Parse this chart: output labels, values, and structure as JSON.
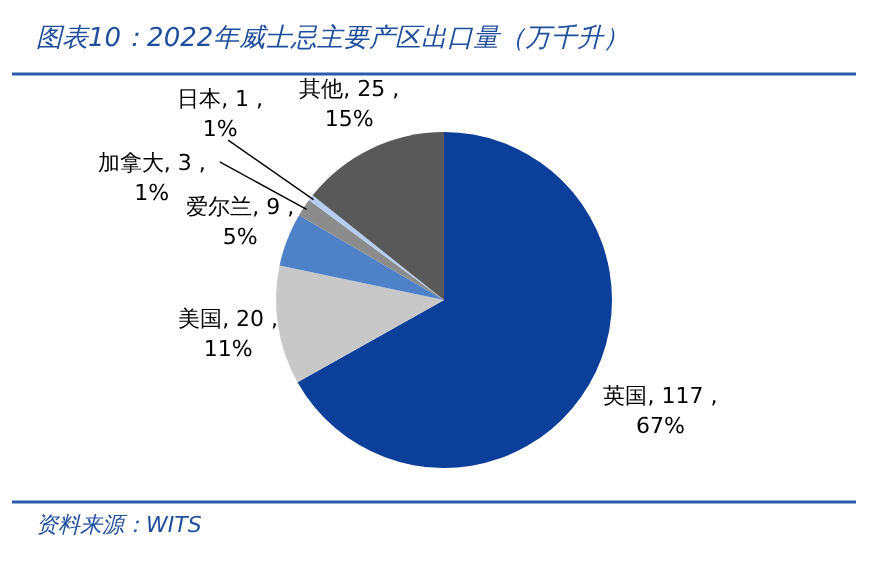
{
  "chart_data": {
    "type": "pie",
    "title": "图表10：2022年威士忌主要产区出口量（万千升）",
    "categories": [
      "英国",
      "美国",
      "爱尔兰",
      "加拿大",
      "日本",
      "其他"
    ],
    "values": [
      117,
      20,
      9,
      3,
      1,
      25
    ],
    "value_labels": [
      "117 ,\n67%",
      "20 ,\n11%",
      "9 ,\n5%",
      "3 ,\n1%",
      "1 ,\n1%",
      "25 ,\n15%"
    ],
    "colors": [
      "#0b3f99",
      "#c8c8c8",
      "#4e81c8",
      "#8c8c8c",
      "#b4cdf0",
      "#595959"
    ],
    "annotations": [
      "资料来源：WITS"
    ]
  }
}
